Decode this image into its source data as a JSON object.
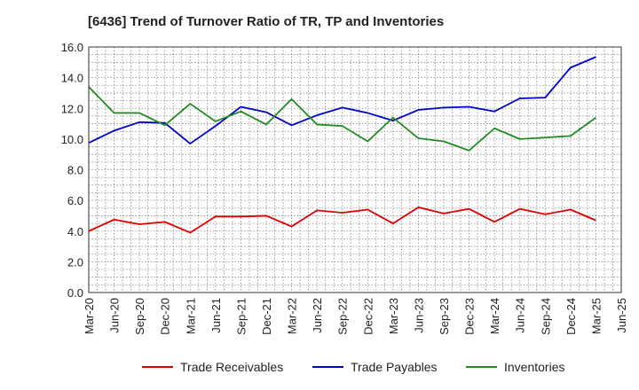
{
  "chart_data": {
    "type": "line",
    "title": "[6436]  Trend of Turnover Ratio of TR, TP and Inventories",
    "xlabel": "",
    "ylabel": "",
    "ylim": [
      0,
      16
    ],
    "y_ticks": [
      "0.0",
      "2.0",
      "4.0",
      "6.0",
      "8.0",
      "10.0",
      "12.0",
      "14.0",
      "16.0"
    ],
    "categories": [
      "Mar-20",
      "Jun-20",
      "Sep-20",
      "Dec-20",
      "Mar-21",
      "Jun-21",
      "Sep-21",
      "Dec-21",
      "Mar-22",
      "Jun-22",
      "Sep-22",
      "Dec-22",
      "Mar-23",
      "Jun-23",
      "Sep-23",
      "Dec-23",
      "Mar-24",
      "Jun-24",
      "Sep-24",
      "Dec-24",
      "Mar-25",
      "Jun-25"
    ],
    "grid": true,
    "legend_position": "bottom",
    "series": [
      {
        "name": "Trade Receivables",
        "color": "#e00000",
        "values": [
          4.0,
          4.75,
          4.45,
          4.6,
          3.9,
          4.95,
          4.95,
          5.0,
          4.3,
          5.35,
          5.2,
          5.4,
          4.5,
          5.55,
          5.15,
          5.45,
          4.6,
          5.45,
          5.1,
          5.4,
          4.7,
          null
        ]
      },
      {
        "name": "Trade Payables",
        "color": "#0000cc",
        "values": [
          9.75,
          10.55,
          11.1,
          11.05,
          9.7,
          10.85,
          12.1,
          11.75,
          10.9,
          11.55,
          12.05,
          11.7,
          11.2,
          11.9,
          12.05,
          12.1,
          11.8,
          12.65,
          12.7,
          14.65,
          15.35,
          null
        ]
      },
      {
        "name": "Inventories",
        "color": "#228b22",
        "values": [
          13.4,
          11.7,
          11.7,
          10.9,
          12.3,
          11.15,
          11.8,
          10.95,
          12.6,
          10.95,
          10.85,
          9.85,
          11.4,
          10.05,
          9.85,
          9.25,
          10.7,
          10.0,
          10.1,
          10.2,
          11.4,
          null
        ]
      }
    ]
  }
}
